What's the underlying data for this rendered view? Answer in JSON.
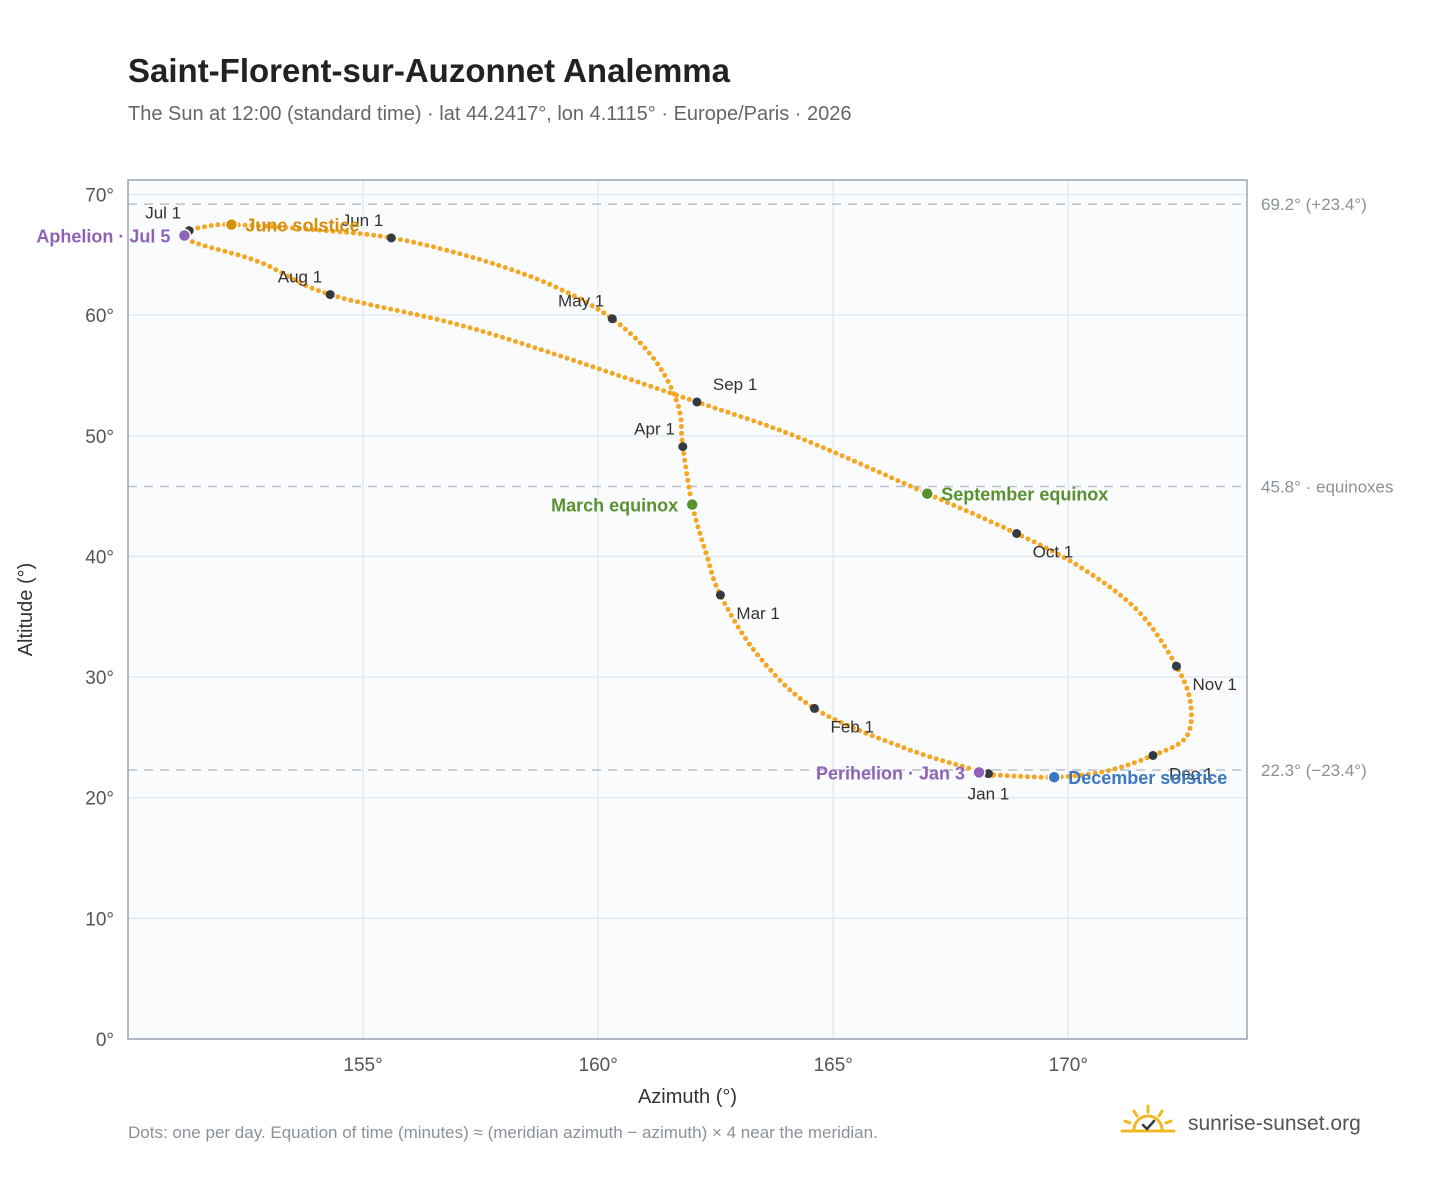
{
  "title": "Saint-Florent-sur-Auzonnet Analemma",
  "subtitle": "The Sun at 12:00 (standard time) · lat 44.2417°, lon 4.1115° · Europe/Paris · 2026",
  "footnote": "Dots: one per day. Equation of time (minutes) ≈ (meridian azimuth − azimuth) × 4 near the meridian.",
  "brand": {
    "name": "sunrise-sunset.org",
    "icon": "sun-check-logo-icon",
    "color": "#f2b824"
  },
  "colors": {
    "path": "#f5a623",
    "month_marker": "#333a40",
    "equinox": "#5a9130",
    "june_solstice": "#d4900d",
    "december_solstice": "#3a78c2",
    "apsis": "#8e62b5",
    "reference_line": "#b9c1c8",
    "grid": "#e4ebf0",
    "plot_background": "#f9fbfd",
    "plot_border": "#9aa5b0"
  },
  "chart_data": {
    "type": "scatter",
    "title": "Saint-Florent-sur-Auzonnet Analemma",
    "xlabel": "Azimuth (°)",
    "ylabel": "Altitude (°)",
    "xlim": [
      150,
      173.8
    ],
    "ylim": [
      0,
      71.2
    ],
    "xticks": [
      155,
      160,
      165,
      170
    ],
    "xtick_labels": [
      "155°",
      "160°",
      "165°",
      "170°"
    ],
    "yticks": [
      0,
      10,
      20,
      30,
      40,
      50,
      60,
      70
    ],
    "ytick_labels": [
      "0°",
      "10°",
      "20°",
      "30°",
      "40°",
      "50°",
      "60°",
      "70°"
    ],
    "grid": true,
    "series_path_points": [
      {
        "date": "Jan 1",
        "az": 168.3,
        "alt": 22.0
      },
      {
        "date": "Jan 15",
        "az": 166.6,
        "alt": 24.0
      },
      {
        "date": "Feb 1",
        "az": 164.6,
        "alt": 27.4
      },
      {
        "date": "Feb 15",
        "az": 163.4,
        "alt": 31.8
      },
      {
        "date": "Mar 1",
        "az": 162.6,
        "alt": 36.8
      },
      {
        "date": "Mar 10",
        "az": 162.3,
        "alt": 40.2
      },
      {
        "date": "Mar 20",
        "az": 162.0,
        "alt": 44.3
      },
      {
        "date": "Apr 1",
        "az": 161.8,
        "alt": 49.1
      },
      {
        "date": "Apr 10",
        "az": 161.7,
        "alt": 52.5
      },
      {
        "date": "Apr 20",
        "az": 161.2,
        "alt": 56.3
      },
      {
        "date": "May 1",
        "az": 160.3,
        "alt": 59.7
      },
      {
        "date": "May 10",
        "az": 159.0,
        "alt": 62.5
      },
      {
        "date": "May 20",
        "az": 157.4,
        "alt": 64.7
      },
      {
        "date": "Jun 1",
        "az": 155.6,
        "alt": 66.4
      },
      {
        "date": "Jun 10",
        "az": 153.9,
        "alt": 67.1
      },
      {
        "date": "Jun 21",
        "az": 152.2,
        "alt": 67.5
      },
      {
        "date": "Jun 26",
        "az": 151.6,
        "alt": 67.3
      },
      {
        "date": "Jul 1",
        "az": 151.3,
        "alt": 67.0
      },
      {
        "date": "Jul 5",
        "az": 151.2,
        "alt": 66.6
      },
      {
        "date": "Jul 10",
        "az": 151.5,
        "alt": 65.9
      },
      {
        "date": "Jul 20",
        "az": 152.8,
        "alt": 64.4
      },
      {
        "date": "Aug 1",
        "az": 154.3,
        "alt": 61.7
      },
      {
        "date": "Aug 15",
        "az": 157.5,
        "alt": 58.7
      },
      {
        "date": "Sep 1",
        "az": 162.1,
        "alt": 52.8
      },
      {
        "date": "Sep 10",
        "az": 164.3,
        "alt": 49.8
      },
      {
        "date": "Sep 22",
        "az": 167.0,
        "alt": 45.2
      },
      {
        "date": "Oct 1",
        "az": 168.9,
        "alt": 41.9
      },
      {
        "date": "Oct 10",
        "az": 170.3,
        "alt": 39.0
      },
      {
        "date": "Oct 20",
        "az": 171.5,
        "alt": 35.4
      },
      {
        "date": "Nov 1",
        "az": 172.3,
        "alt": 30.9
      },
      {
        "date": "Nov 10",
        "az": 172.6,
        "alt": 27.8
      },
      {
        "date": "Nov 20",
        "az": 172.5,
        "alt": 25.0
      },
      {
        "date": "Dec 1",
        "az": 171.8,
        "alt": 23.5
      },
      {
        "date": "Dec 10",
        "az": 170.8,
        "alt": 22.2
      },
      {
        "date": "Dec 21",
        "az": 169.7,
        "alt": 21.7
      },
      {
        "date": "Dec 31",
        "az": 168.4,
        "alt": 21.9
      }
    ],
    "month_markers": [
      {
        "label": "Jan 1",
        "az": 168.3,
        "alt": 22.0,
        "anchor": "middle",
        "pos": "below"
      },
      {
        "label": "Feb 1",
        "az": 164.6,
        "alt": 27.4,
        "anchor": "start",
        "pos": "below-right"
      },
      {
        "label": "Mar 1",
        "az": 162.6,
        "alt": 36.8,
        "anchor": "start",
        "pos": "below-right"
      },
      {
        "label": "Apr 1",
        "az": 161.8,
        "alt": 49.1,
        "anchor": "end",
        "pos": "above-left"
      },
      {
        "label": "May 1",
        "az": 160.3,
        "alt": 59.7,
        "anchor": "end",
        "pos": "above-left"
      },
      {
        "label": "Jun 1",
        "az": 155.6,
        "alt": 66.4,
        "anchor": "end",
        "pos": "above-left"
      },
      {
        "label": "Jul 1",
        "az": 151.3,
        "alt": 67.0,
        "anchor": "end",
        "pos": "above-left"
      },
      {
        "label": "Aug 1",
        "az": 154.3,
        "alt": 61.7,
        "anchor": "end",
        "pos": "above-left"
      },
      {
        "label": "Sep 1",
        "az": 162.1,
        "alt": 52.8,
        "anchor": "start",
        "pos": "above-right"
      },
      {
        "label": "Oct 1",
        "az": 168.9,
        "alt": 41.9,
        "anchor": "start",
        "pos": "below-right"
      },
      {
        "label": "Nov 1",
        "az": 172.3,
        "alt": 30.9,
        "anchor": "start",
        "pos": "below-right"
      },
      {
        "label": "Dec 1",
        "az": 171.8,
        "alt": 23.5,
        "anchor": "start",
        "pos": "below-right"
      }
    ],
    "events": [
      {
        "label": "March equinox",
        "az": 162.0,
        "alt": 44.3,
        "color": "#5a9130",
        "anchor": "end"
      },
      {
        "label": "September equinox",
        "az": 167.0,
        "alt": 45.2,
        "color": "#5a9130",
        "anchor": "start"
      },
      {
        "label": "June solstice",
        "az": 152.2,
        "alt": 67.5,
        "color": "#d4900d",
        "anchor": "start"
      },
      {
        "label": "December solstice",
        "az": 169.7,
        "alt": 21.7,
        "color": "#3a78c2",
        "anchor": "start"
      },
      {
        "label": "Aphelion · Jul 5",
        "az": 151.2,
        "alt": 66.6,
        "color": "#8e62b5",
        "anchor": "end"
      },
      {
        "label": "Perihelion · Jan 3",
        "az": 168.1,
        "alt": 22.1,
        "color": "#8e62b5",
        "anchor": "end"
      }
    ],
    "reference_lines": [
      {
        "alt": 69.2,
        "label": "69.2° (+23.4°)"
      },
      {
        "alt": 45.8,
        "label": "45.8° · equinoxes"
      },
      {
        "alt": 22.3,
        "label": "22.3° (−23.4°)"
      }
    ]
  }
}
